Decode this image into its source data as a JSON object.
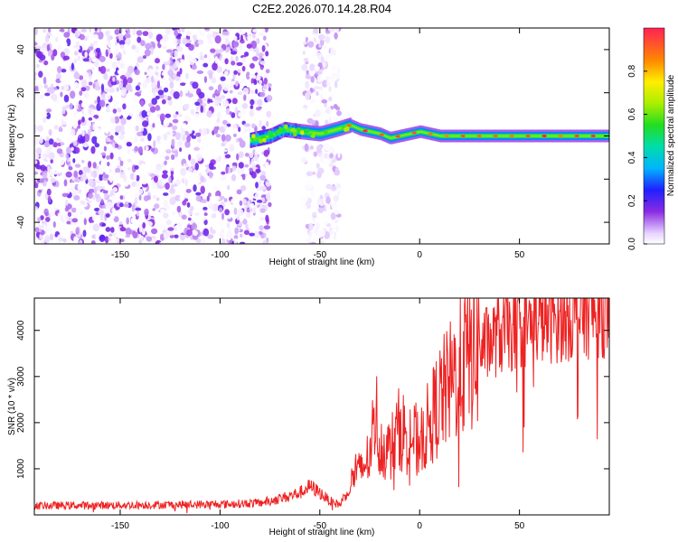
{
  "title": "C2E2.2026.070.14.28.R04",
  "chart_data": [
    {
      "type": "heatmap",
      "xlabel": "Height of straight line (km)",
      "ylabel": "Frequency (Hz)",
      "xlim": [
        -193,
        95
      ],
      "ylim": [
        -50,
        50
      ],
      "xticks": [
        -150,
        -100,
        -50,
        0,
        50
      ],
      "yticks": [
        -40,
        -20,
        0,
        20,
        40
      ],
      "colorbar": {
        "label": "Normalized spectral amplitude",
        "range": [
          0,
          1
        ],
        "ticks": [
          0.0,
          0.2,
          0.4,
          0.6,
          0.8
        ]
      },
      "regions": [
        {
          "name": "noise",
          "x_from": -193,
          "x_to": -75,
          "freq_range": [
            -50,
            50
          ],
          "amplitude_range": [
            0.0,
            0.2
          ]
        },
        {
          "name": "noise",
          "x_from": -58,
          "x_to": -40,
          "freq_range": [
            -50,
            50
          ],
          "amplitude_range": [
            0.0,
            0.1
          ]
        },
        {
          "name": "signal",
          "x_from": -85,
          "x_to": 95,
          "center_freq": 0,
          "amplitude_range": [
            0.1,
            1.0
          ]
        }
      ],
      "signal_centerline": {
        "x": [
          -85,
          -75,
          -68,
          -60,
          -50,
          -42,
          -35,
          -30,
          -25,
          -20,
          -15,
          -10,
          -5,
          0,
          10,
          30,
          60,
          95
        ],
        "freq": [
          -2,
          0,
          3,
          2,
          1,
          3,
          5,
          3,
          2,
          1,
          -1,
          0,
          1,
          2,
          0,
          0,
          0,
          0
        ]
      }
    },
    {
      "type": "line",
      "xlabel": "Height of straight line (km)",
      "ylabel": "SNR (10 * v/v)",
      "xlim": [
        -193,
        95
      ],
      "ylim": [
        0,
        4700
      ],
      "xticks": [
        -150,
        -100,
        -50,
        0,
        50
      ],
      "yticks": [
        1000,
        2000,
        3000,
        4000
      ],
      "series": [
        {
          "name": "SNR",
          "color": "#ee2222",
          "x": [
            -193,
            -150,
            -100,
            -80,
            -70,
            -60,
            -55,
            -50,
            -45,
            -40,
            -35,
            -32,
            -30,
            -25,
            -22,
            -20,
            -15,
            -10,
            -5,
            0,
            5,
            10,
            15,
            20,
            25,
            30,
            40,
            50,
            60,
            70,
            80,
            95
          ],
          "y": [
            200,
            210,
            230,
            260,
            350,
            480,
            620,
            480,
            300,
            220,
            600,
            1000,
            900,
            1300,
            2300,
            1500,
            1400,
            1900,
            1700,
            1600,
            2000,
            2500,
            2800,
            3200,
            3450,
            3600,
            3900,
            4050,
            4200,
            4250,
            4350,
            4400
          ]
        }
      ]
    }
  ]
}
